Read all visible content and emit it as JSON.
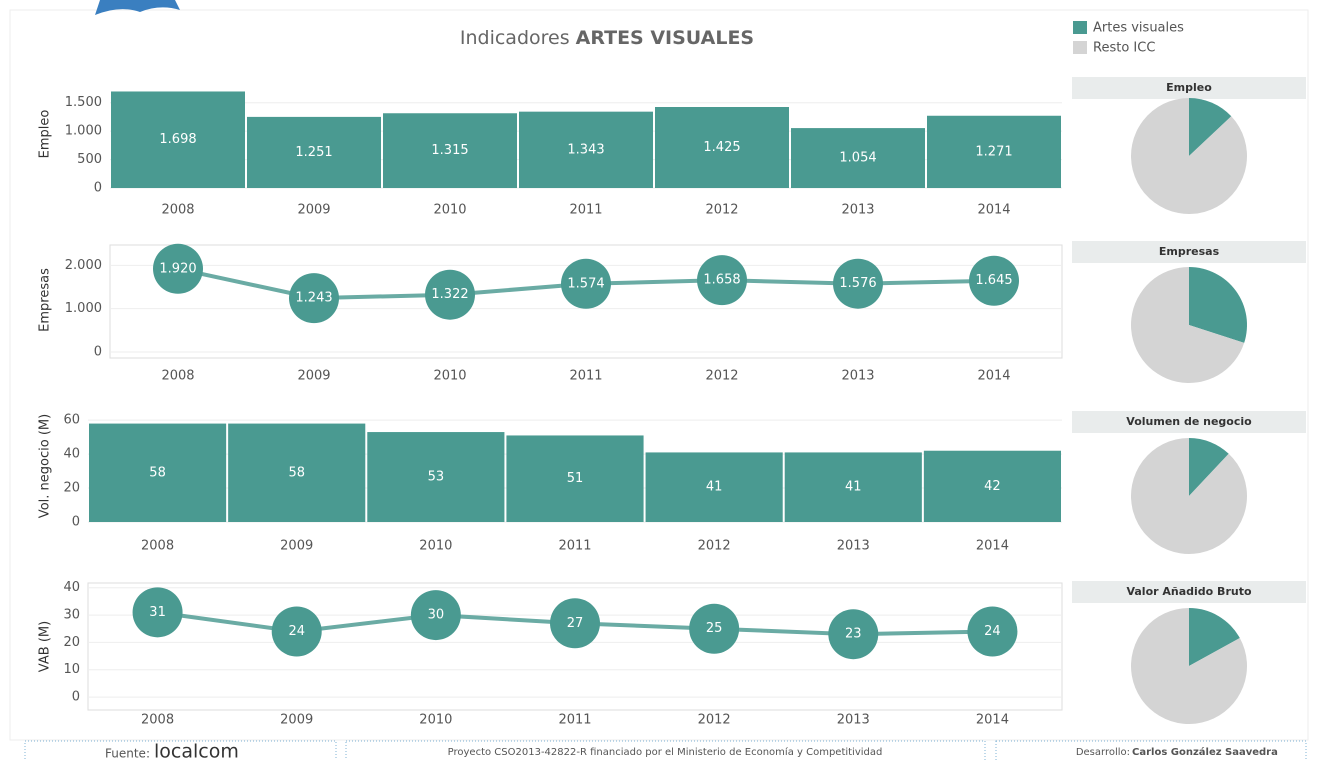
{
  "header": {
    "title": "Indicadores",
    "title_bold": "ARTES VISUALES"
  },
  "chart_data": [
    {
      "type": "bar",
      "ylabel": "Empleo",
      "categories": [
        "2008",
        "2009",
        "2010",
        "2011",
        "2012",
        "2013",
        "2014"
      ],
      "values": [
        1698,
        1251,
        1315,
        1343,
        1425,
        1054,
        1271
      ],
      "value_labels": [
        "1.698",
        "1.251",
        "1.315",
        "1.343",
        "1.425",
        "1.054",
        "1.271"
      ],
      "color": "#4a9a91",
      "ylim": [
        0,
        1900
      ],
      "yticks": [
        0,
        500,
        {
          "value": 1000,
          "label": "1.000"
        },
        {
          "value": 1500,
          "label": "1.500"
        }
      ],
      "grid": true
    },
    {
      "type": "line",
      "ylabel": "Empresas",
      "categories": [
        "2008",
        "2009",
        "2010",
        "2011",
        "2012",
        "2013",
        "2014"
      ],
      "values": [
        1920,
        1243,
        1322,
        1574,
        1658,
        1576,
        1645
      ],
      "value_labels": [
        "1.920",
        "1.243",
        "1.322",
        "1.574",
        "1.658",
        "1.576",
        "1.645"
      ],
      "color": "#4a9a91",
      "line_color": "#6aaba4",
      "ylim": [
        0,
        2400
      ],
      "yticks": [
        0,
        {
          "value": 1000,
          "label": "1.000"
        },
        {
          "value": 2000,
          "label": "2.000"
        }
      ],
      "grid": true
    },
    {
      "type": "bar",
      "ylabel": "Vol. negocio (M)",
      "categories": [
        "2008",
        "2009",
        "2010",
        "2011",
        "2012",
        "2013",
        "2014"
      ],
      "values": [
        58,
        58,
        53,
        51,
        41,
        41,
        42
      ],
      "color": "#4a9a91",
      "ylim": [
        0,
        66
      ],
      "yticks": [
        0,
        20,
        40,
        60
      ],
      "grid": true
    },
    {
      "type": "line",
      "ylabel": "VAB (M)",
      "categories": [
        "2008",
        "2009",
        "2010",
        "2011",
        "2012",
        "2013",
        "2014"
      ],
      "values": [
        31,
        24,
        30,
        27,
        25,
        23,
        24
      ],
      "color": "#4a9a91",
      "line_color": "#6aaba4",
      "ylim": [
        -4,
        41
      ],
      "yticks": [
        0,
        10,
        20,
        30,
        40
      ],
      "grid": true
    },
    {
      "type": "pie",
      "title": "Empleo",
      "categories": [
        "Artes visuales",
        "Resto ICC"
      ],
      "values": [
        13,
        87
      ],
      "colors": [
        "#4a9a91",
        "#d4d4d4"
      ]
    },
    {
      "type": "pie",
      "title": "Empresas",
      "categories": [
        "Artes visuales",
        "Resto ICC"
      ],
      "values": [
        30,
        70
      ],
      "colors": [
        "#4a9a91",
        "#d4d4d4"
      ]
    },
    {
      "type": "pie",
      "title": "Volumen de negocio",
      "categories": [
        "Artes visuales",
        "Resto ICC"
      ],
      "values": [
        12,
        88
      ],
      "colors": [
        "#4a9a91",
        "#d4d4d4"
      ]
    },
    {
      "type": "pie",
      "title": "Valor Añadido Bruto",
      "categories": [
        "Artes visuales",
        "Resto ICC"
      ],
      "values": [
        17,
        83
      ],
      "colors": [
        "#4a9a91",
        "#d4d4d4"
      ]
    }
  ],
  "footer": {
    "source_label": "Fuente:",
    "source": "localcom",
    "project": "Proyecto CSO2013-42822-R financiado por el Ministerio de Economía y Competitividad",
    "dev_label": "Desarrollo:",
    "dev": "Carlos González Saavedra"
  }
}
